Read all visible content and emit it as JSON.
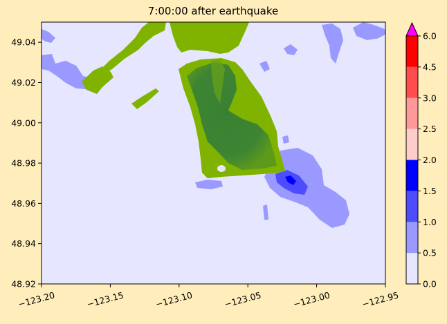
{
  "chart_data": {
    "type": "heatmap",
    "title": "7:00:00 after earthquake",
    "xlabel": "",
    "ylabel": "",
    "xlim": [
      -123.2,
      -122.95
    ],
    "ylim": [
      48.92,
      49.05
    ],
    "xticks": [
      "−123.20",
      "−123.15",
      "−123.10",
      "−123.05",
      "−123.00",
      "−122.95"
    ],
    "xtick_values": [
      -123.2,
      -123.15,
      -123.1,
      -123.05,
      -123.0,
      -122.95
    ],
    "yticks": [
      "48.92",
      "48.94",
      "48.96",
      "48.98",
      "49.00",
      "49.02",
      "49.04"
    ],
    "ytick_values": [
      48.92,
      48.94,
      48.96,
      48.98,
      49.0,
      49.02,
      49.04
    ],
    "colorbar": {
      "levels": [
        0.0,
        0.5,
        1.0,
        1.5,
        2.0,
        2.5,
        3.0,
        4.5,
        6.0
      ],
      "tick_labels": [
        "0.0",
        "0.5",
        "1.0",
        "1.5",
        "2.0",
        "2.5",
        "3.0",
        "4.5",
        "6.0"
      ],
      "colors": [
        "#e6e6ff",
        "#9999ff",
        "#4d4dff",
        "#0000ff",
        "#ffcccc",
        "#ff9999",
        "#ff4d4d",
        "#ff0000"
      ],
      "extend_max_color": "#ff00ff"
    },
    "water_color": "#e6e6ff",
    "land_colors": {
      "low": "#7fb300",
      "high": "#3a8033"
    },
    "grid": false
  }
}
